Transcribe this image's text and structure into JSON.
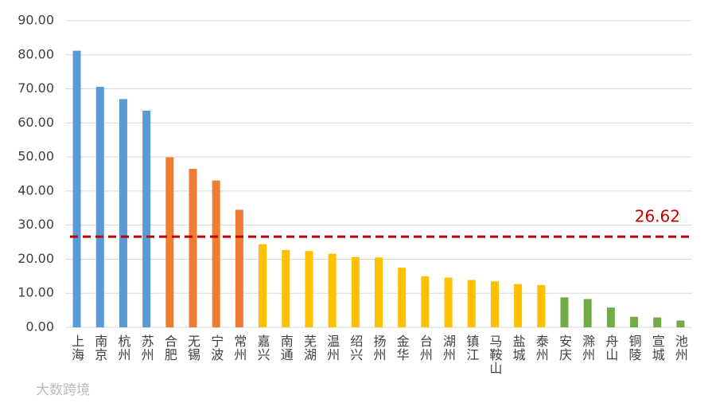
{
  "chart_data": {
    "type": "bar",
    "categories": [
      "上海",
      "南京",
      "杭州",
      "苏州",
      "合肥",
      "无锡",
      "宁波",
      "常州",
      "嘉兴",
      "南通",
      "芜湖",
      "温州",
      "绍兴",
      "扬州",
      "金华",
      "台州",
      "湖州",
      "镇江",
      "马鞍山",
      "盐城",
      "泰州",
      "安庆",
      "滁州",
      "舟山",
      "铜陵",
      "宣城",
      "池州"
    ],
    "values": [
      81.2,
      70.6,
      67.0,
      63.6,
      49.9,
      46.5,
      43.1,
      34.5,
      24.4,
      22.7,
      22.4,
      21.6,
      20.6,
      20.5,
      17.5,
      15.0,
      14.6,
      13.9,
      13.5,
      12.7,
      12.4,
      8.8,
      8.3,
      5.8,
      3.1,
      2.9,
      2.0
    ],
    "colors": [
      "#5b9bd5",
      "#5b9bd5",
      "#5b9bd5",
      "#5b9bd5",
      "#ed7d31",
      "#ed7d31",
      "#ed7d31",
      "#ed7d31",
      "#ffc000",
      "#ffc000",
      "#ffc000",
      "#ffc000",
      "#ffc000",
      "#ffc000",
      "#ffc000",
      "#ffc000",
      "#ffc000",
      "#ffc000",
      "#ffc000",
      "#ffc000",
      "#ffc000",
      "#70ad47",
      "#70ad47",
      "#70ad47",
      "#70ad47",
      "#70ad47",
      "#70ad47"
    ],
    "ylim": [
      0,
      90
    ],
    "yticks": [
      {
        "value": 0,
        "label": "0.00"
      },
      {
        "value": 10,
        "label": "10.00"
      },
      {
        "value": 20,
        "label": "20.00"
      },
      {
        "value": 30,
        "label": "30.00"
      },
      {
        "value": 40,
        "label": "40.00"
      },
      {
        "value": 50,
        "label": "50.00"
      },
      {
        "value": 60,
        "label": "60.00"
      },
      {
        "value": 70,
        "label": "70.00"
      },
      {
        "value": 80,
        "label": "80.00"
      },
      {
        "value": 90,
        "label": "90.00"
      }
    ],
    "grid": true,
    "reference_line": 26.62,
    "reference_color": "#c00000"
  },
  "watermark": "大数跨境"
}
